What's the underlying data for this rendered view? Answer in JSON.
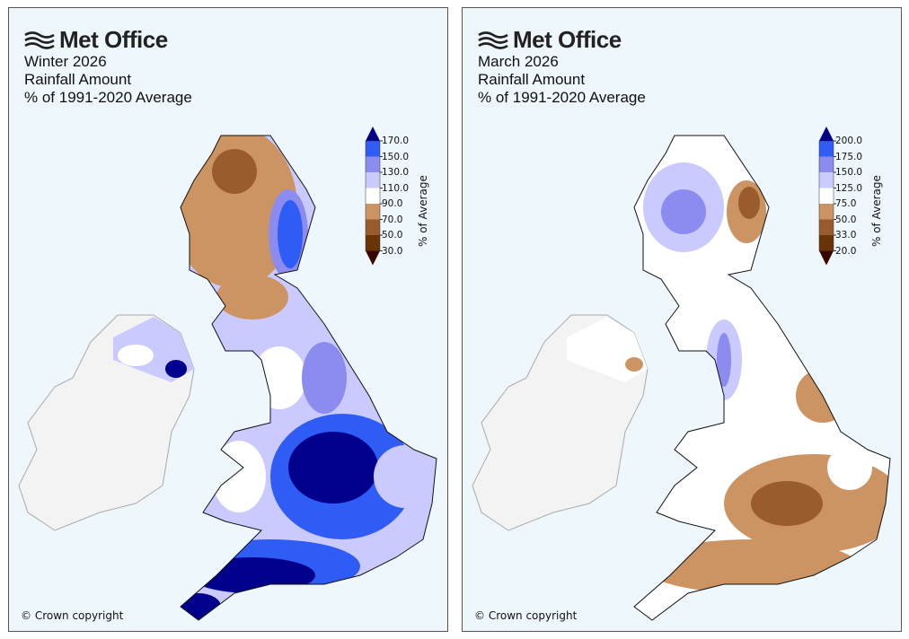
{
  "panels": [
    {
      "logo": "Met Office",
      "title_lines": [
        "Winter 2026",
        "Rainfall Amount",
        "% of 1991-2020 Average"
      ],
      "legend": {
        "ticks": [
          "170.0",
          "150.0",
          "130.0",
          "110.0",
          "90.0",
          "70.0",
          "50.0",
          "30.0"
        ],
        "axis_label": "% of Average",
        "colors": [
          "#00008c",
          "#2f5cf5",
          "#8c8cf0",
          "#cacaff",
          "#ffffff",
          "#cd9463",
          "#9a5c2c",
          "#6a3406",
          "#3a0600"
        ]
      },
      "copyright": "© Crown copyright"
    },
    {
      "logo": "Met Office",
      "title_lines": [
        "March 2026",
        "Rainfall Amount",
        "% of 1991-2020 Average"
      ],
      "legend": {
        "ticks": [
          "200.0",
          "175.0",
          "150.0",
          "125.0",
          "75.0",
          "50.0",
          "33.0",
          "20.0"
        ],
        "axis_label": "% of Average",
        "colors": [
          "#00008c",
          "#2f5cf5",
          "#8c8cf0",
          "#cacaff",
          "#ffffff",
          "#cd9463",
          "#9a5c2c",
          "#6a3406",
          "#3a0600"
        ]
      },
      "copyright": "© Crown copyright"
    }
  ]
}
